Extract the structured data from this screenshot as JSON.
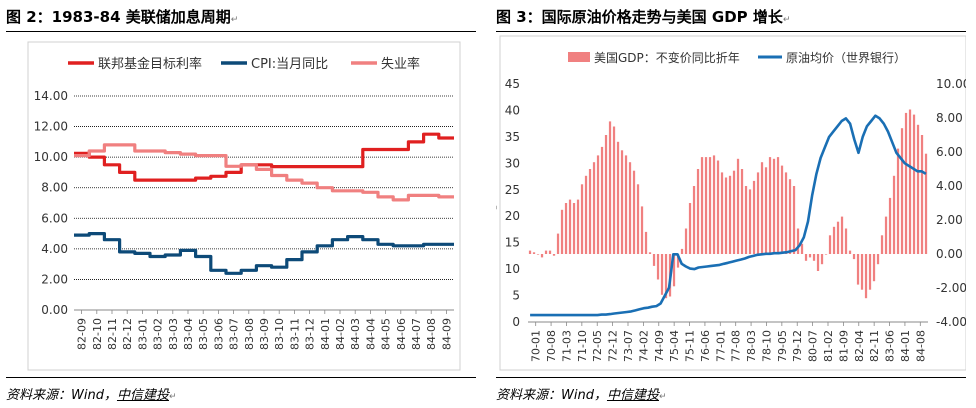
{
  "figures": [
    {
      "label": "图 2：1983-84 美联储加息周期",
      "source_prefix": "资料来源：Wind，",
      "source_brand": "中信建投"
    },
    {
      "label": "图 3：国际原油价格走势与美国 GDP 增长",
      "source_prefix": "资料来源：Wind，",
      "source_brand": "中信建投"
    }
  ],
  "chart_data": [
    {
      "type": "line",
      "ylim": [
        0,
        14
      ],
      "yticks": [
        "0.00",
        "2.00",
        "4.00",
        "6.00",
        "8.00",
        "10.00",
        "12.00",
        "14.00"
      ],
      "x": [
        "82-09",
        "82-10",
        "82-11",
        "82-12",
        "83-01",
        "83-02",
        "83-03",
        "83-04",
        "83-05",
        "83-06",
        "83-07",
        "83-08",
        "83-09",
        "83-10",
        "83-11",
        "83-12",
        "84-01",
        "84-02",
        "84-03",
        "84-04",
        "84-05",
        "84-06",
        "84-07",
        "84-08",
        "84-09"
      ],
      "grid": true,
      "legend": "top",
      "series": [
        {
          "name": "联邦基金目标利率",
          "color": "#e02020",
          "values": [
            10.25,
            10.0,
            9.5,
            9.0,
            8.5,
            8.5,
            8.5,
            8.5,
            8.63,
            8.75,
            9.0,
            9.5,
            9.5,
            9.38,
            9.38,
            9.38,
            9.38,
            9.38,
            9.38,
            10.5,
            10.5,
            10.5,
            11.0,
            11.5,
            11.25
          ]
        },
        {
          "name": "CPI:当月同比",
          "color": "#0d4a78",
          "values": [
            4.9,
            5.0,
            4.6,
            3.8,
            3.7,
            3.5,
            3.6,
            3.9,
            3.5,
            2.6,
            2.4,
            2.6,
            2.9,
            2.8,
            3.3,
            3.8,
            4.2,
            4.6,
            4.8,
            4.6,
            4.3,
            4.2,
            4.2,
            4.3,
            4.3
          ]
        },
        {
          "name": "失业率",
          "color": "#f08080",
          "values": [
            10.1,
            10.4,
            10.8,
            10.8,
            10.4,
            10.4,
            10.3,
            10.2,
            10.1,
            10.1,
            9.4,
            9.5,
            9.2,
            8.8,
            8.5,
            8.3,
            8.0,
            7.8,
            7.8,
            7.7,
            7.4,
            7.2,
            7.5,
            7.5,
            7.4
          ]
        }
      ]
    },
    {
      "type": "bar+line",
      "ylim": [
        0,
        45
      ],
      "yticks": [
        "0",
        "5",
        "10",
        "15",
        "20",
        "25",
        "30",
        "35",
        "40",
        "45"
      ],
      "y2lim": [
        -4,
        10
      ],
      "y2ticks": [
        "-4.00",
        "-2.00",
        "0.00",
        "2.00",
        "4.00",
        "6.00",
        "8.00",
        "10.00"
      ],
      "x_ticks": [
        "70-01",
        "70-08",
        "71-03",
        "71-10",
        "72-05",
        "72-12",
        "73-07",
        "74-02",
        "74-09",
        "75-04",
        "75-11",
        "76-06",
        "77-01",
        "77-08",
        "78-03",
        "78-10",
        "79-05",
        "79-12",
        "80-07",
        "81-02",
        "81-09",
        "82-04",
        "82-11",
        "83-06",
        "84-01",
        "84-08"
      ],
      "legend": "top",
      "series": [
        {
          "name": "美国GDP：不变价同比折年",
          "type": "bar",
          "axis": "right",
          "color": "#f08080",
          "values": [
            0.2,
            0.1,
            0.0,
            -0.2,
            0.2,
            0.2,
            -0.1,
            1.2,
            2.6,
            3.0,
            3.2,
            3.0,
            3.2,
            4.1,
            4.6,
            5.0,
            5.4,
            5.8,
            6.3,
            7.0,
            7.8,
            7.5,
            6.6,
            6.1,
            5.8,
            5.4,
            4.9,
            4.1,
            2.8,
            1.3,
            0.1,
            -0.7,
            -1.5,
            -2.4,
            -2.6,
            -2.5,
            -1.9,
            -0.8,
            0.3,
            1.5,
            3.0,
            4.0,
            5.0,
            5.7,
            5.7,
            5.7,
            5.8,
            5.5,
            4.8,
            4.5,
            4.6,
            4.9,
            5.6,
            5.0,
            4.0,
            3.8,
            4.3,
            4.8,
            5.4,
            5.1,
            5.7,
            5.6,
            5.7,
            5.2,
            4.8,
            4.4,
            4.0,
            1.5,
            0.6,
            -0.4,
            -0.2,
            -0.4,
            -1.0,
            -0.6,
            0.0,
            1.1,
            1.6,
            1.9,
            2.2,
            1.5,
            0.2,
            -0.3,
            -1.8,
            -2.1,
            -2.6,
            -2.1,
            -1.6,
            -0.6,
            1.1,
            2.2,
            3.3,
            4.6,
            6.2,
            7.4,
            8.3,
            8.5,
            8.2,
            7.6,
            7.0,
            5.9
          ]
        },
        {
          "name": "原油均价（世界银行）",
          "type": "line",
          "axis": "left",
          "color": "#1a6fb4",
          "values": [
            1.3,
            1.3,
            1.3,
            1.3,
            1.3,
            1.3,
            1.3,
            1.3,
            1.3,
            1.3,
            1.3,
            1.3,
            1.3,
            1.3,
            1.3,
            1.3,
            1.3,
            1.4,
            1.4,
            1.5,
            1.6,
            1.7,
            1.8,
            1.9,
            2.0,
            2.2,
            2.4,
            2.6,
            2.7,
            2.9,
            3.0,
            3.5,
            5.0,
            6.5,
            12.8,
            12.8,
            11.0,
            10.5,
            10.1,
            10.0,
            10.3,
            10.4,
            10.5,
            10.6,
            10.7,
            10.8,
            11.0,
            11.2,
            11.4,
            11.6,
            11.8,
            12.0,
            12.3,
            12.5,
            12.7,
            12.8,
            12.9,
            12.9,
            13.0,
            13.0,
            13.1,
            13.2,
            13.4,
            13.6,
            14.5,
            16.0,
            19.0,
            24.0,
            28.0,
            31.0,
            33.0,
            35.0,
            36.0,
            37.0,
            38.0,
            38.5,
            37.5,
            34.5,
            32.0,
            35.0,
            37.0,
            38.0,
            39.0,
            38.5,
            37.5,
            36.0,
            34.0,
            32.0,
            31.0,
            30.0,
            29.5,
            29.0,
            28.5,
            28.5,
            28.0
          ]
        }
      ]
    }
  ]
}
